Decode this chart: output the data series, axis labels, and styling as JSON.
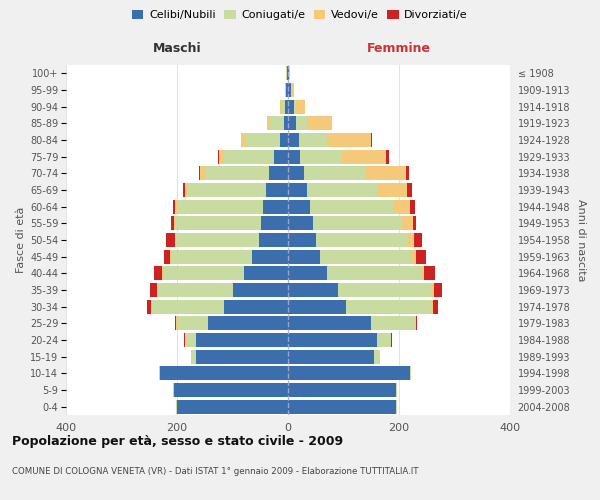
{
  "age_groups": [
    "0-4",
    "5-9",
    "10-14",
    "15-19",
    "20-24",
    "25-29",
    "30-34",
    "35-39",
    "40-44",
    "45-49",
    "50-54",
    "55-59",
    "60-64",
    "65-69",
    "70-74",
    "75-79",
    "80-84",
    "85-89",
    "90-94",
    "95-99",
    "100+"
  ],
  "birth_years": [
    "2004-2008",
    "1999-2003",
    "1994-1998",
    "1989-1993",
    "1984-1988",
    "1979-1983",
    "1974-1978",
    "1969-1973",
    "1964-1968",
    "1959-1963",
    "1954-1958",
    "1949-1953",
    "1944-1948",
    "1939-1943",
    "1934-1938",
    "1929-1933",
    "1924-1928",
    "1919-1923",
    "1914-1918",
    "1909-1913",
    "≤ 1908"
  ],
  "male": {
    "celibi": [
      200,
      205,
      230,
      165,
      165,
      145,
      115,
      100,
      80,
      65,
      52,
      48,
      45,
      40,
      35,
      25,
      15,
      8,
      5,
      3,
      2
    ],
    "coniugati": [
      2,
      2,
      2,
      10,
      20,
      55,
      130,
      135,
      145,
      145,
      150,
      155,
      155,
      140,
      115,
      90,
      60,
      25,
      8,
      2,
      1
    ],
    "vedovi": [
      0,
      0,
      0,
      0,
      1,
      1,
      1,
      1,
      2,
      2,
      2,
      2,
      3,
      5,
      8,
      10,
      10,
      5,
      2,
      0,
      0
    ],
    "divorziati": [
      0,
      0,
      0,
      0,
      2,
      2,
      8,
      12,
      15,
      12,
      15,
      5,
      5,
      5,
      2,
      2,
      0,
      0,
      0,
      0,
      0
    ]
  },
  "female": {
    "nubili": [
      195,
      195,
      220,
      155,
      160,
      150,
      105,
      90,
      70,
      58,
      50,
      45,
      40,
      35,
      28,
      22,
      20,
      15,
      10,
      5,
      2
    ],
    "coniugate": [
      2,
      2,
      2,
      10,
      25,
      80,
      155,
      170,
      170,
      165,
      165,
      160,
      150,
      125,
      110,
      75,
      50,
      20,
      5,
      2,
      1
    ],
    "vedove": [
      0,
      0,
      0,
      0,
      1,
      1,
      2,
      3,
      5,
      8,
      12,
      20,
      30,
      55,
      75,
      80,
      80,
      45,
      15,
      3,
      1
    ],
    "divorziate": [
      0,
      0,
      0,
      0,
      2,
      2,
      8,
      15,
      20,
      18,
      15,
      5,
      8,
      8,
      5,
      5,
      2,
      0,
      0,
      0,
      0
    ]
  },
  "colors": {
    "celibi": "#3a6eac",
    "coniugati": "#c8dba0",
    "vedovi": "#f5c97a",
    "divorziati": "#cc2222"
  },
  "title": "Popolazione per età, sesso e stato civile - 2009",
  "subtitle": "COMUNE DI COLOGNA VENETA (VR) - Dati ISTAT 1° gennaio 2009 - Elaborazione TUTTITALIA.IT",
  "xlabel_left": "Maschi",
  "xlabel_right": "Femmine",
  "ylabel_left": "Fasce di età",
  "ylabel_right": "Anni di nascita",
  "xlim": 400,
  "bg_color": "#f0f0f0",
  "plot_bg_color": "#ffffff"
}
